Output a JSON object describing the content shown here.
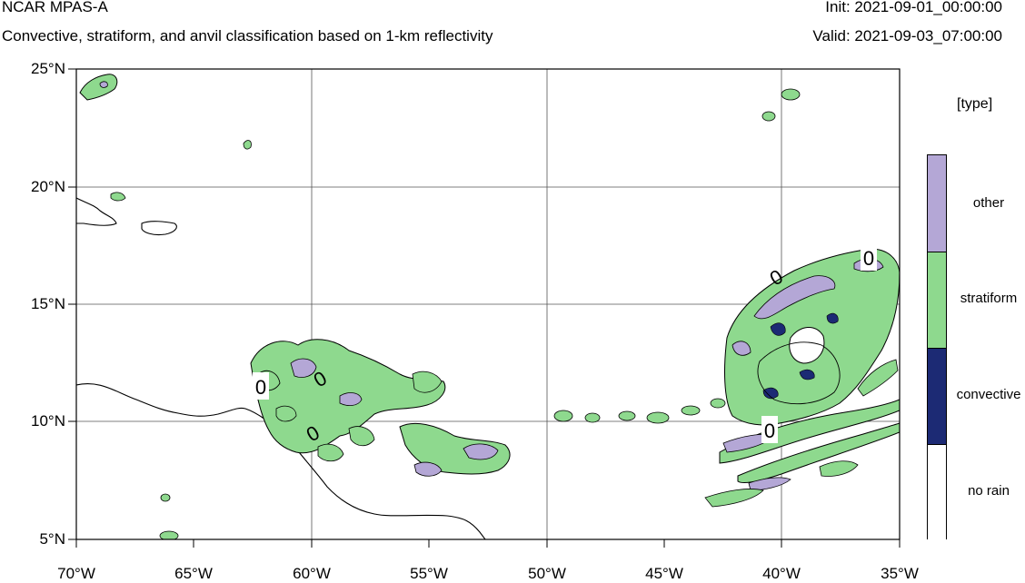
{
  "header": {
    "model": "NCAR MPAS-A",
    "subtitle": "Convective, stratiform, and anvil classification based on 1-km reflectivity",
    "init": "Init: 2021-09-01_00:00:00",
    "valid": "Valid: 2021-09-03_07:00:00"
  },
  "axes": {
    "lat_ticks": [
      "25°N",
      "20°N",
      "15°N",
      "10°N",
      "5°N"
    ],
    "lon_ticks": [
      "70°W",
      "65°W",
      "60°W",
      "55°W",
      "50°W",
      "45°W",
      "40°W",
      "35°W"
    ],
    "lat_range": [
      5,
      25
    ],
    "lon_range": [
      -70,
      -35
    ]
  },
  "legend": {
    "title": "[type]",
    "items": [
      {
        "label": "other",
        "color": "#b4a7d6"
      },
      {
        "label": "stratiform",
        "color": "#8ed98e"
      },
      {
        "label": "convective",
        "color": "#1c2a74"
      },
      {
        "label": "no rain",
        "color": "#ffffff"
      }
    ]
  },
  "contour_labels": [
    "0",
    "0",
    "0",
    "0",
    "0",
    "0"
  ]
}
